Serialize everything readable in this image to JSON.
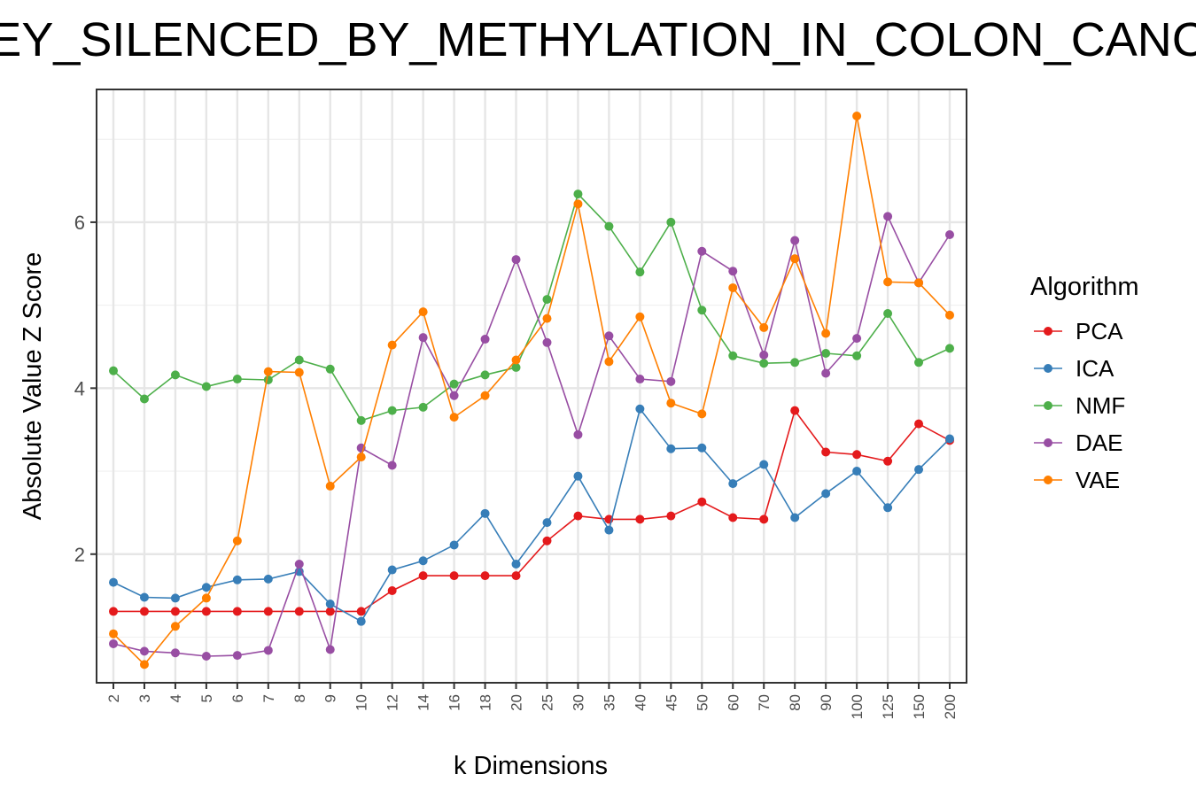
{
  "chart_data": {
    "type": "line",
    "title": "EY_SILENCED_BY_METHYLATION_IN_COLON_CANC",
    "xlabel": "k Dimensions",
    "ylabel": "Absolute Value Z Score",
    "ylim": [
      0.45,
      7.6
    ],
    "yticks": [
      2,
      4,
      6
    ],
    "grid": true,
    "legend_title": "Algorithm",
    "legend_position": "right",
    "categories": [
      "2",
      "3",
      "4",
      "5",
      "6",
      "7",
      "8",
      "9",
      "10",
      "12",
      "14",
      "16",
      "18",
      "20",
      "25",
      "30",
      "35",
      "40",
      "45",
      "50",
      "60",
      "70",
      "80",
      "90",
      "100",
      "125",
      "150",
      "200"
    ],
    "series": [
      {
        "name": "PCA",
        "color": "#e41a1c",
        "values": [
          1.31,
          1.31,
          1.31,
          1.31,
          1.31,
          1.31,
          1.31,
          1.31,
          1.31,
          1.56,
          1.74,
          1.74,
          1.74,
          1.74,
          2.16,
          2.46,
          2.42,
          2.42,
          2.46,
          2.63,
          2.44,
          2.42,
          3.73,
          3.23,
          3.2,
          3.12,
          3.57,
          3.37
        ]
      },
      {
        "name": "ICA",
        "color": "#377eb8",
        "values": [
          1.66,
          1.48,
          1.47,
          1.6,
          1.69,
          1.7,
          1.79,
          1.4,
          1.19,
          1.81,
          1.92,
          2.11,
          2.49,
          1.88,
          2.38,
          2.94,
          2.29,
          3.75,
          3.27,
          3.28,
          2.85,
          3.08,
          2.44,
          2.73,
          3.0,
          2.56,
          3.02,
          3.39
        ]
      },
      {
        "name": "NMF",
        "color": "#4daf4a",
        "values": [
          4.21,
          3.87,
          4.16,
          4.02,
          4.11,
          4.1,
          4.34,
          4.23,
          3.61,
          3.73,
          3.77,
          4.05,
          4.16,
          4.25,
          5.07,
          6.34,
          5.95,
          5.4,
          6.0,
          4.94,
          4.39,
          4.3,
          4.31,
          4.42,
          4.39,
          4.9,
          4.31,
          4.48
        ]
      },
      {
        "name": "DAE",
        "color": "#984ea3",
        "values": [
          0.92,
          0.83,
          0.81,
          0.77,
          0.78,
          0.84,
          1.88,
          0.85,
          3.28,
          3.07,
          4.61,
          3.91,
          4.59,
          5.55,
          4.55,
          3.44,
          4.63,
          4.11,
          4.08,
          5.65,
          5.41,
          4.4,
          5.78,
          4.18,
          4.6,
          6.07,
          5.27,
          5.85
        ]
      },
      {
        "name": "VAE",
        "color": "#ff7f00",
        "values": [
          1.04,
          0.67,
          1.13,
          1.47,
          2.16,
          4.2,
          4.19,
          2.82,
          3.17,
          4.52,
          4.92,
          3.65,
          3.91,
          4.34,
          4.84,
          6.22,
          4.32,
          4.86,
          3.82,
          3.69,
          5.21,
          4.73,
          5.56,
          4.66,
          7.28,
          5.28,
          5.27,
          4.88
        ]
      }
    ]
  }
}
